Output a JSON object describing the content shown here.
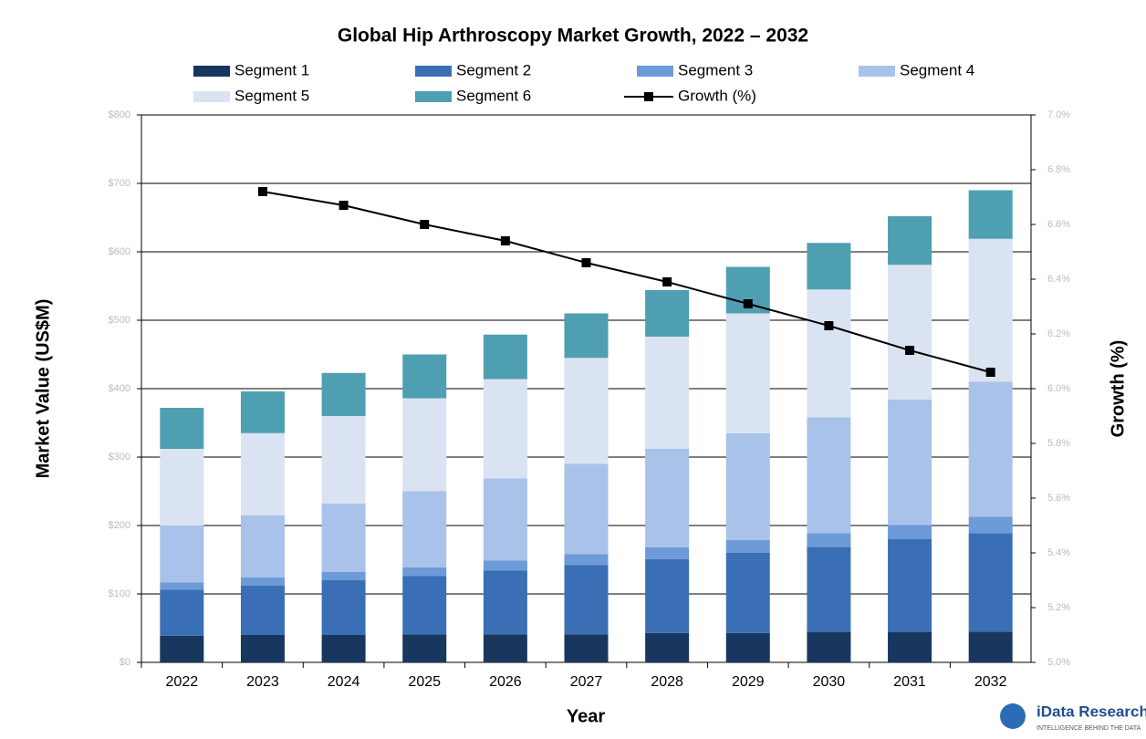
{
  "chart_data": {
    "type": "stacked-bar-line",
    "title": "Global Hip Arthroscopy Market Growth, 2022 – 2032",
    "x_label": "Year",
    "y_label": "Market Value (US$M)",
    "y2_label": "Growth (%)",
    "categories": [
      "2022",
      "2023",
      "2024",
      "2025",
      "2026",
      "2027",
      "2028",
      "2029",
      "2030",
      "2031",
      "2032"
    ],
    "series": [
      {
        "name": "Segment 1",
        "color": "#17375e",
        "values": [
          39,
          40,
          40,
          41,
          41,
          41,
          43,
          43,
          44,
          44,
          45
        ]
      },
      {
        "name": "Segment 2",
        "color": "#3a6fb5",
        "values": [
          67,
          72,
          80,
          85,
          93,
          101,
          108,
          117,
          125,
          136,
          144
        ]
      },
      {
        "name": "Segment 3",
        "color": "#6d9bd8",
        "values": [
          11,
          12,
          12,
          13,
          15,
          16,
          17,
          19,
          20,
          21,
          24
        ]
      },
      {
        "name": "Segment 4",
        "color": "#a9c2ea",
        "values": [
          83,
          91,
          100,
          111,
          120,
          132,
          144,
          156,
          169,
          183,
          197
        ]
      },
      {
        "name": "Segment 5",
        "color": "#d9e3f2",
        "values": [
          112,
          120,
          128,
          136,
          145,
          155,
          164,
          175,
          187,
          197,
          209
        ]
      },
      {
        "name": "Segment 6",
        "color": "#4f9fb2",
        "values": [
          60,
          61,
          63,
          64,
          65,
          65,
          68,
          68,
          68,
          71,
          71
        ]
      },
      {
        "name": "Growth (%)",
        "color": "#000000",
        "axis": "y2",
        "values": [
          null,
          6.72,
          6.67,
          6.6,
          6.54,
          6.46,
          6.39,
          6.31,
          6.23,
          6.14,
          6.06
        ]
      }
    ],
    "ylim": [
      0,
      800
    ],
    "yticks": [
      {
        "value": 0,
        "label": "$0"
      },
      {
        "value": 100,
        "label": "$100"
      },
      {
        "value": 200,
        "label": "$200"
      },
      {
        "value": 300,
        "label": "$300"
      },
      {
        "value": 400,
        "label": "$400"
      },
      {
        "value": 500,
        "label": "$500"
      },
      {
        "value": 600,
        "label": "$600"
      },
      {
        "value": 700,
        "label": "$700"
      },
      {
        "value": 800,
        "label": "$800"
      }
    ],
    "y2lim": [
      5.0,
      7.0
    ],
    "y2ticks": [
      {
        "value": 5.0,
        "label": "5.0%"
      },
      {
        "value": 5.2,
        "label": "5.2%"
      },
      {
        "value": 5.4,
        "label": "5.4%"
      },
      {
        "value": 5.6,
        "label": "5.6%"
      },
      {
        "value": 5.8,
        "label": "5.8%"
      },
      {
        "value": 6.0,
        "label": "6.0%"
      },
      {
        "value": 6.2,
        "label": "6.2%"
      },
      {
        "value": 6.4,
        "label": "6.4%"
      },
      {
        "value": 6.6,
        "label": "6.6%"
      },
      {
        "value": 6.8,
        "label": "6.8%"
      },
      {
        "value": 7.0,
        "label": "7.0%"
      }
    ],
    "grid": true,
    "logo": {
      "name": "iData Research",
      "tagline": "INTELLIGENCE BEHIND THE DATA"
    }
  }
}
